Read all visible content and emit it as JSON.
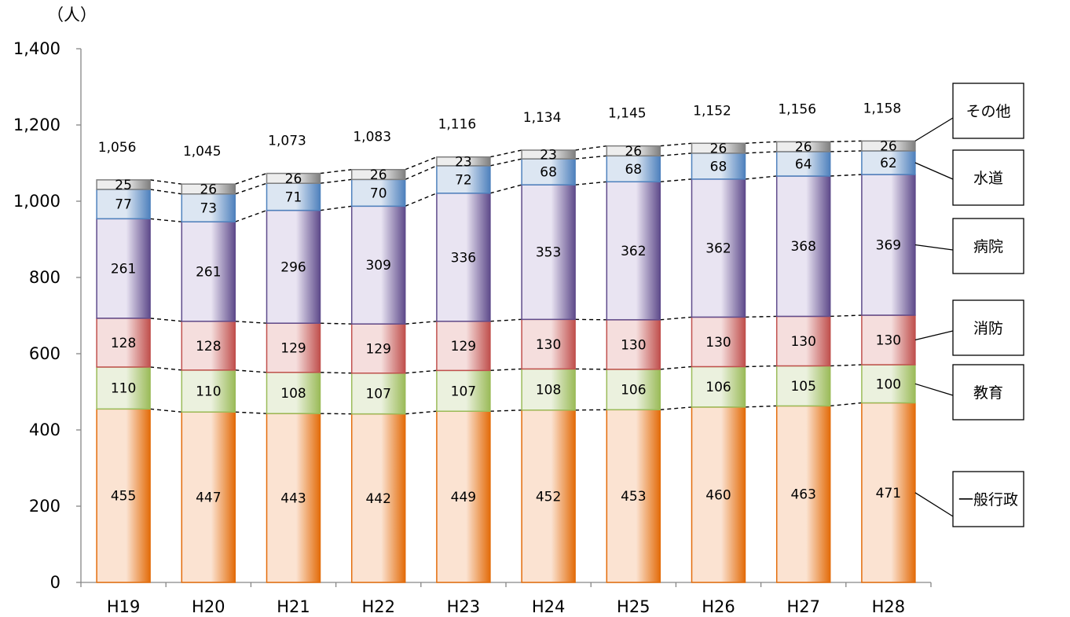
{
  "chart_data": {
    "type": "bar",
    "stacked": true,
    "unit_label": "（人）",
    "categories": [
      "H19",
      "H20",
      "H21",
      "H22",
      "H23",
      "H24",
      "H25",
      "H26",
      "H27",
      "H28"
    ],
    "ylim": [
      0,
      1400
    ],
    "yticks": [
      0,
      200,
      400,
      600,
      800,
      1000,
      1200,
      1400
    ],
    "ytick_labels": [
      "0",
      "200",
      "400",
      "600",
      "800",
      "1,000",
      "1,200",
      "1,400"
    ],
    "series": [
      {
        "name": "一般行政",
        "values": [
          455,
          447,
          443,
          442,
          449,
          452,
          453,
          460,
          463,
          471
        ],
        "color": "#e36c0a",
        "color_light": "#fbe3d2"
      },
      {
        "name": "教育",
        "values": [
          110,
          110,
          108,
          107,
          107,
          108,
          106,
          106,
          105,
          100
        ],
        "color": "#9bbb59",
        "color_light": "#ebf1de"
      },
      {
        "name": "消防",
        "values": [
          128,
          128,
          129,
          129,
          129,
          130,
          130,
          130,
          130,
          130
        ],
        "color": "#c0504d",
        "color_light": "#f5dedd"
      },
      {
        "name": "病院",
        "values": [
          261,
          261,
          296,
          309,
          336,
          353,
          362,
          362,
          368,
          369
        ],
        "color": "#5f4b8b",
        "color_light": "#e9e4f2"
      },
      {
        "name": "水道",
        "values": [
          77,
          73,
          71,
          70,
          72,
          68,
          68,
          68,
          64,
          62
        ],
        "color": "#4f81bd",
        "color_light": "#dce6f2"
      },
      {
        "name": "その他",
        "values": [
          25,
          26,
          26,
          26,
          23,
          23,
          26,
          26,
          26,
          26
        ],
        "color": "#7f7f7f",
        "color_light": "#ededed"
      }
    ],
    "totals": [
      "1,056",
      "1,045",
      "1,073",
      "1,083",
      "1,116",
      "1,134",
      "1,145",
      "1,152",
      "1,156",
      "1,158"
    ],
    "legend_placement": "right",
    "grid": false,
    "connector_lines": "dashed"
  }
}
